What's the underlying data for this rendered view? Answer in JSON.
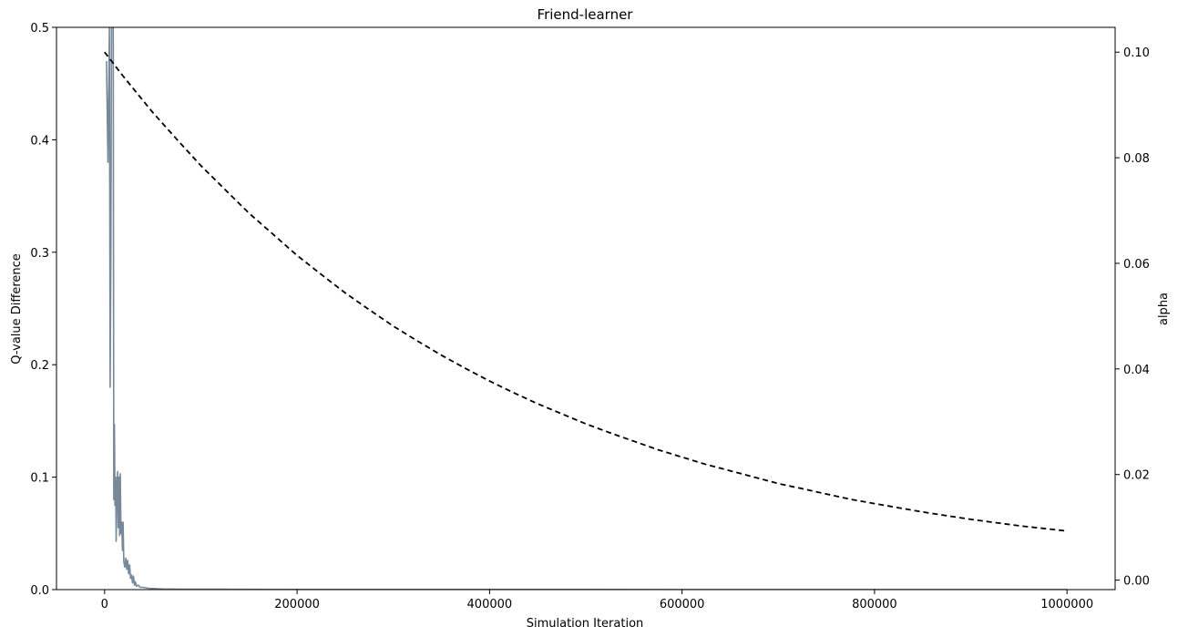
{
  "chart_data": {
    "type": "line",
    "title": "Friend-learner",
    "xlabel": "Simulation Iteration",
    "ylabel": "Q-value Difference",
    "y2label": "alpha",
    "xlim": [
      -50000,
      1050000
    ],
    "ylim": [
      0,
      0.5
    ],
    "y2lim": [
      -0.0018,
      0.1047
    ],
    "xticks": [
      0,
      200000,
      400000,
      600000,
      800000,
      1000000
    ],
    "xtick_labels": [
      "0",
      "200000",
      "400000",
      "600000",
      "800000",
      "1000000"
    ],
    "yticks": [
      0.0,
      0.1,
      0.2,
      0.3,
      0.4,
      0.5
    ],
    "ytick_labels": [
      "0.0",
      "0.1",
      "0.2",
      "0.3",
      "0.4",
      "0.5"
    ],
    "y2ticks": [
      0.0,
      0.02,
      0.04,
      0.06,
      0.08,
      0.1
    ],
    "y2tick_labels": [
      "0.00",
      "0.02",
      "0.04",
      "0.06",
      "0.08",
      "0.10"
    ],
    "grid": false,
    "series": [
      {
        "axis": "left",
        "color": "#778899",
        "style": "solid",
        "points": [
          [
            2000,
            0.47
          ],
          [
            3500,
            0.38
          ],
          [
            5000,
            0.5
          ],
          [
            5800,
            0.18
          ],
          [
            6500,
            0.3
          ],
          [
            7200,
            0.5
          ],
          [
            8000,
            0.5
          ],
          [
            9000,
            0.5
          ],
          [
            9500,
            0.08
          ],
          [
            10200,
            0.147
          ],
          [
            10800,
            0.075
          ],
          [
            11500,
            0.1
          ],
          [
            12000,
            0.043
          ],
          [
            12800,
            0.09
          ],
          [
            13500,
            0.105
          ],
          [
            14200,
            0.055
          ],
          [
            15000,
            0.1
          ],
          [
            15600,
            0.048
          ],
          [
            16300,
            0.103
          ],
          [
            17000,
            0.05
          ],
          [
            17800,
            0.06
          ],
          [
            18500,
            0.035
          ],
          [
            19200,
            0.06
          ],
          [
            20000,
            0.025
          ],
          [
            21000,
            0.02
          ],
          [
            22000,
            0.028
          ],
          [
            23000,
            0.018
          ],
          [
            24000,
            0.026
          ],
          [
            25000,
            0.014
          ],
          [
            26000,
            0.022
          ],
          [
            27000,
            0.01
          ],
          [
            28000,
            0.013
          ],
          [
            29000,
            0.006
          ],
          [
            30000,
            0.012
          ],
          [
            31000,
            0.004
          ],
          [
            32000,
            0.007
          ],
          [
            33000,
            0.003
          ],
          [
            35000,
            0.004
          ],
          [
            37000,
            0.002
          ],
          [
            40000,
            0.002
          ],
          [
            45000,
            0.0012
          ],
          [
            50000,
            0.001
          ],
          [
            60000,
            0.0006
          ],
          [
            80000,
            0.0004
          ],
          [
            120000,
            0.0003
          ],
          [
            200000,
            0.0002
          ],
          [
            400000,
            0.0002
          ],
          [
            600000,
            0.0001
          ],
          [
            800000,
            0.0001
          ],
          [
            1000000,
            0.0001
          ]
        ]
      },
      {
        "axis": "right",
        "color": "#000000",
        "style": "dashed",
        "points": [
          [
            0,
            0.1
          ],
          [
            20000,
            0.0953
          ],
          [
            50000,
            0.0886
          ],
          [
            75000,
            0.0835
          ],
          [
            100000,
            0.0785
          ],
          [
            125000,
            0.074
          ],
          [
            150000,
            0.0695
          ],
          [
            175000,
            0.0655
          ],
          [
            200000,
            0.0615
          ],
          [
            225000,
            0.0579
          ],
          [
            250000,
            0.0544
          ],
          [
            275000,
            0.0512
          ],
          [
            300000,
            0.0481
          ],
          [
            325000,
            0.0453
          ],
          [
            350000,
            0.0426
          ],
          [
            375000,
            0.0401
          ],
          [
            400000,
            0.0377
          ],
          [
            425000,
            0.0355
          ],
          [
            450000,
            0.0334
          ],
          [
            475000,
            0.0315
          ],
          [
            500000,
            0.0296
          ],
          [
            525000,
            0.0279
          ],
          [
            550000,
            0.0263
          ],
          [
            575000,
            0.0247
          ],
          [
            600000,
            0.0233
          ],
          [
            625000,
            0.0219
          ],
          [
            650000,
            0.0207
          ],
          [
            675000,
            0.0195
          ],
          [
            700000,
            0.0183
          ],
          [
            725000,
            0.0173
          ],
          [
            750000,
            0.0163
          ],
          [
            775000,
            0.0153
          ],
          [
            800000,
            0.0145
          ],
          [
            825000,
            0.0137
          ],
          [
            850000,
            0.0129
          ],
          [
            875000,
            0.0122
          ],
          [
            900000,
            0.0115
          ],
          [
            925000,
            0.0109
          ],
          [
            950000,
            0.0103
          ],
          [
            975000,
            0.0098
          ],
          [
            1000000,
            0.0093
          ]
        ]
      }
    ]
  }
}
